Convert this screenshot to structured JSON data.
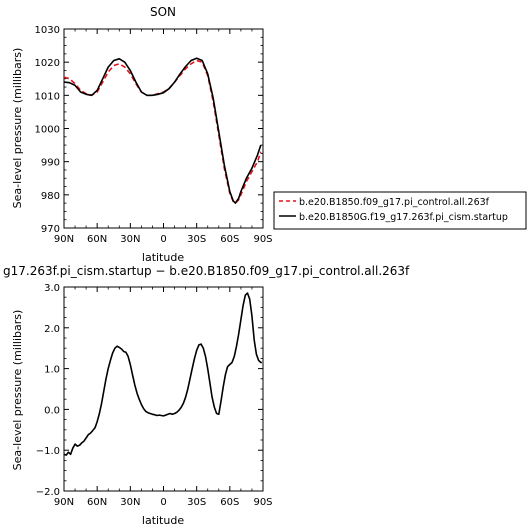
{
  "chart_data": [
    {
      "type": "line",
      "title": "SON",
      "xlabel": "latitude",
      "ylabel": "Sea-level pressure (millibars)",
      "xlim": [
        90,
        -90
      ],
      "ylim": [
        970,
        1030
      ],
      "xticks": [
        90,
        60,
        30,
        0,
        -30,
        -60,
        -90
      ],
      "xtick_labels": [
        "90N",
        "60N",
        "30N",
        "0",
        "30S",
        "60S",
        "90S"
      ],
      "yticks": [
        970,
        980,
        990,
        1000,
        1010,
        1020,
        1030
      ],
      "ytick_labels": [
        "970",
        "980",
        "990",
        "1000",
        "1010",
        "1020",
        "1030"
      ],
      "grid": false,
      "legend_position": "right, outside plot",
      "series": [
        {
          "name": "b.e20.B1850.f09_g17.pi_control.all.263f",
          "color": "#e8101a",
          "dash": "dashed",
          "x": [
            90,
            85,
            80,
            75,
            70,
            65,
            60,
            55,
            50,
            45,
            40,
            35,
            30,
            25,
            20,
            15,
            10,
            5,
            0,
            -5,
            -10,
            -15,
            -20,
            -25,
            -30,
            -35,
            -40,
            -45,
            -50,
            -55,
            -60,
            -63,
            -65,
            -68,
            -70,
            -75,
            -80,
            -85,
            -88
          ],
          "y": [
            1015.5,
            1015,
            1013.5,
            1011.5,
            1010.5,
            1010,
            1011,
            1014,
            1017,
            1019,
            1019.5,
            1018.5,
            1016.5,
            1013.5,
            1011,
            1010,
            1010,
            1010.5,
            1011,
            1012,
            1014,
            1016,
            1018,
            1019.5,
            1020.5,
            1020,
            1016,
            1008,
            998,
            988,
            980.5,
            978,
            977.5,
            978.5,
            980,
            984,
            987,
            990,
            993
          ]
        },
        {
          "name": "b.e20.B1850G.f19_g17.263f.pi_cism.startup",
          "color": "#000000",
          "dash": "solid",
          "x": [
            90,
            85,
            80,
            75,
            70,
            65,
            60,
            55,
            50,
            45,
            40,
            35,
            30,
            25,
            20,
            15,
            10,
            5,
            0,
            -5,
            -10,
            -15,
            -20,
            -25,
            -30,
            -35,
            -40,
            -45,
            -50,
            -55,
            -60,
            -63,
            -65,
            -68,
            -70,
            -75,
            -80,
            -85,
            -88
          ],
          "y": [
            1014,
            1013.8,
            1013,
            1011,
            1010.3,
            1010,
            1011.5,
            1015,
            1018.5,
            1020.5,
            1021,
            1020,
            1017.5,
            1014,
            1011,
            1010,
            1010,
            1010.3,
            1010.8,
            1012,
            1014,
            1016.5,
            1018.7,
            1020.5,
            1021.2,
            1020.5,
            1016.5,
            1009,
            999,
            989,
            981,
            978.2,
            977.5,
            979,
            981,
            985,
            988,
            992,
            995
          ]
        }
      ]
    },
    {
      "type": "line",
      "title": "g17.263f.pi_cism.startup − b.e20.B1850.f09_g17.pi_control.all.263f",
      "xlabel": "latitude",
      "ylabel": "Sea-level pressure (millibars)",
      "xlim": [
        90,
        -90
      ],
      "ylim": [
        -2.0,
        3.0
      ],
      "xticks": [
        90,
        60,
        30,
        0,
        -30,
        -60,
        -90
      ],
      "xtick_labels": [
        "90N",
        "60N",
        "30N",
        "0",
        "30S",
        "60S",
        "90S"
      ],
      "yticks": [
        -2,
        -1,
        0,
        1,
        2,
        3
      ],
      "ytick_labels": [
        "−2.0",
        "−1.0",
        "0.0",
        "1.0",
        "2.0",
        "3.0"
      ],
      "grid": false,
      "series": [
        {
          "color": "#000000",
          "dash": "solid",
          "x": [
            90,
            88,
            86,
            84,
            82,
            80,
            78,
            76,
            74,
            72,
            70,
            68,
            66,
            64,
            62,
            60,
            58,
            56,
            54,
            52,
            50,
            48,
            46,
            44,
            42,
            40,
            38,
            36,
            34,
            32,
            30,
            28,
            26,
            24,
            22,
            20,
            18,
            16,
            14,
            12,
            10,
            8,
            6,
            4,
            2,
            0,
            -2,
            -4,
            -6,
            -8,
            -10,
            -12,
            -14,
            -16,
            -18,
            -20,
            -22,
            -24,
            -26,
            -28,
            -30,
            -32,
            -34,
            -36,
            -38,
            -40,
            -42,
            -44,
            -46,
            -48,
            -50,
            -52,
            -54,
            -56,
            -58,
            -60,
            -62,
            -64,
            -66,
            -68,
            -70,
            -72,
            -74,
            -76,
            -78,
            -80,
            -82,
            -84,
            -86,
            -88,
            -89
          ],
          "y": [
            -1.1,
            -1.12,
            -1.05,
            -1.1,
            -0.95,
            -0.85,
            -0.9,
            -0.88,
            -0.82,
            -0.78,
            -0.7,
            -0.62,
            -0.58,
            -0.52,
            -0.45,
            -0.3,
            -0.1,
            0.15,
            0.45,
            0.75,
            1.0,
            1.2,
            1.38,
            1.5,
            1.55,
            1.52,
            1.48,
            1.42,
            1.4,
            1.3,
            1.1,
            0.85,
            0.6,
            0.4,
            0.25,
            0.12,
            0.02,
            -0.05,
            -0.08,
            -0.1,
            -0.12,
            -0.13,
            -0.15,
            -0.14,
            -0.15,
            -0.16,
            -0.14,
            -0.12,
            -0.1,
            -0.12,
            -0.1,
            -0.07,
            -0.02,
            0.05,
            0.15,
            0.3,
            0.5,
            0.75,
            1.0,
            1.25,
            1.45,
            1.58,
            1.6,
            1.5,
            1.3,
            1.0,
            0.65,
            0.3,
            0.05,
            -0.1,
            -0.12,
            0.2,
            0.55,
            0.85,
            1.05,
            1.1,
            1.15,
            1.3,
            1.55,
            1.85,
            2.2,
            2.55,
            2.8,
            2.85,
            2.7,
            2.3,
            1.7,
            1.35,
            1.2,
            1.15,
            1.15
          ]
        }
      ]
    }
  ]
}
